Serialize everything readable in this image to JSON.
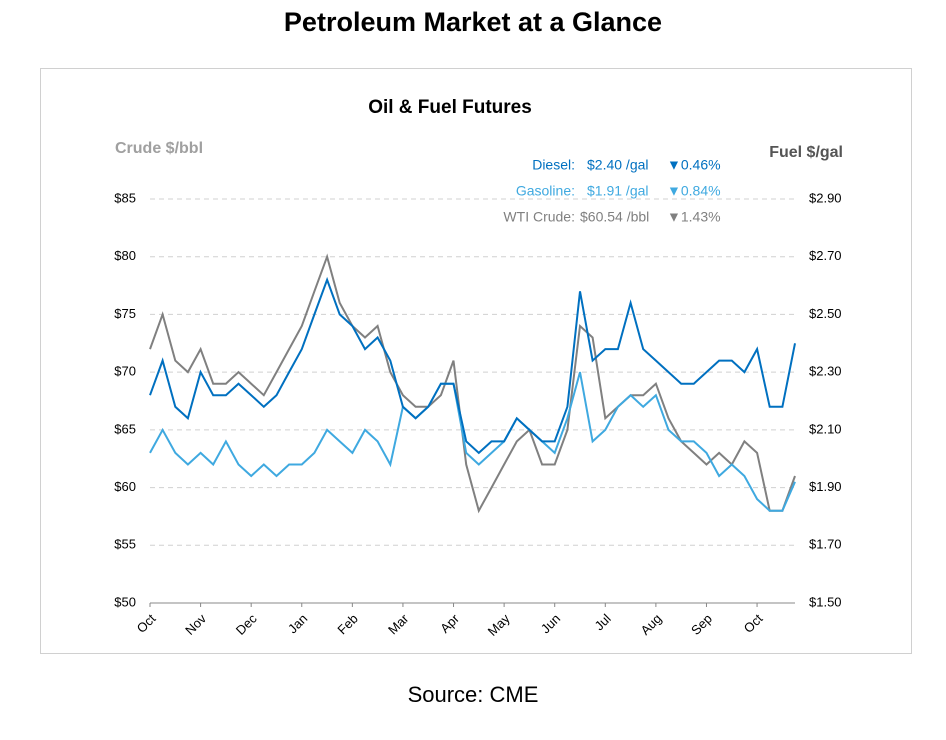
{
  "page_title": "Petroleum Market at a Glance",
  "source": "Source: CME",
  "chart_data": {
    "type": "line",
    "title": "Oil & Fuel Futures",
    "y_label": "Crude $/bbl",
    "y2_label": "Fuel $/gal",
    "categories": [
      "Oct",
      null,
      null,
      null,
      "Nov",
      null,
      null,
      null,
      "Dec",
      null,
      null,
      null,
      "Jan",
      null,
      null,
      null,
      "Feb",
      null,
      null,
      null,
      "Mar",
      null,
      null,
      null,
      "Apr",
      null,
      null,
      null,
      "May",
      null,
      null,
      null,
      "Jun",
      null,
      null,
      null,
      "Jul",
      null,
      null,
      null,
      "Aug",
      null,
      null,
      null,
      "Sep",
      null,
      null,
      null,
      "Oct",
      null,
      null,
      null
    ],
    "ylim": [
      50,
      85
    ],
    "yticks": [
      {
        "value": 50,
        "label": "$50"
      },
      {
        "value": 55,
        "label": "$55"
      },
      {
        "value": 60,
        "label": "$60"
      },
      {
        "value": 65,
        "label": "$65"
      },
      {
        "value": 70,
        "label": "$70"
      },
      {
        "value": 75,
        "label": "$75"
      },
      {
        "value": 80,
        "label": "$80"
      },
      {
        "value": 85,
        "label": "$85"
      }
    ],
    "y2lim": [
      1.5,
      2.9
    ],
    "y2ticks": [
      {
        "value": 1.5,
        "label": "$1.50"
      },
      {
        "value": 1.7,
        "label": "$1.70"
      },
      {
        "value": 1.9,
        "label": "$1.90"
      },
      {
        "value": 2.1,
        "label": "$2.10"
      },
      {
        "value": 2.3,
        "label": "$2.30"
      },
      {
        "value": 2.5,
        "label": "$2.50"
      },
      {
        "value": 2.7,
        "label": "$2.70"
      },
      {
        "value": 2.9,
        "label": "$2.90"
      }
    ],
    "grid": true,
    "series": [
      {
        "name": "Diesel:",
        "price_label": "$2.40 /gal",
        "change_label": "▼0.46%",
        "color": "#0070c0",
        "axis": "y2",
        "values": [
          2.22,
          2.34,
          2.18,
          2.14,
          2.3,
          2.22,
          2.22,
          2.26,
          2.22,
          2.18,
          2.22,
          2.3,
          2.38,
          2.5,
          2.62,
          2.5,
          2.46,
          2.38,
          2.42,
          2.34,
          2.18,
          2.14,
          2.18,
          2.26,
          2.26,
          2.06,
          2.02,
          2.06,
          2.06,
          2.14,
          2.1,
          2.06,
          2.06,
          2.18,
          2.58,
          2.34,
          2.38,
          2.38,
          2.54,
          2.38,
          2.34,
          2.3,
          2.26,
          2.26,
          2.3,
          2.34,
          2.34,
          2.3,
          2.38,
          2.18,
          2.18,
          2.4
        ]
      },
      {
        "name": "Gasoline:",
        "price_label": "$1.91 /gal",
        "change_label": "▼0.84%",
        "color": "#3fa9e0",
        "axis": "y2",
        "values": [
          2.02,
          2.1,
          2.02,
          1.98,
          2.02,
          1.98,
          2.06,
          1.98,
          1.94,
          1.98,
          1.94,
          1.98,
          1.98,
          2.02,
          2.1,
          2.06,
          2.02,
          2.1,
          2.06,
          1.98,
          2.18,
          2.14,
          2.18,
          2.26,
          2.26,
          2.02,
          1.98,
          2.02,
          2.06,
          2.14,
          2.1,
          2.06,
          2.02,
          2.14,
          2.3,
          2.06,
          2.1,
          2.18,
          2.22,
          2.18,
          2.22,
          2.1,
          2.06,
          2.06,
          2.02,
          1.94,
          1.98,
          1.94,
          1.86,
          1.82,
          1.82,
          1.92
        ]
      },
      {
        "name": "WTI Crude:",
        "price_label": "$60.54 /bbl",
        "change_label": "▼1.43%",
        "color": "#808080",
        "values": [
          72,
          75,
          71,
          70,
          72,
          69,
          69,
          70,
          69,
          68,
          70,
          72,
          74,
          77,
          80,
          76,
          74,
          73,
          74,
          70,
          68,
          67,
          67,
          68,
          71,
          62,
          58,
          60,
          62,
          64,
          65,
          62,
          62,
          65,
          74,
          73,
          66,
          67,
          68,
          68,
          69,
          66,
          64,
          63,
          62,
          63,
          62,
          64,
          63,
          58,
          58,
          61
        ]
      }
    ]
  }
}
